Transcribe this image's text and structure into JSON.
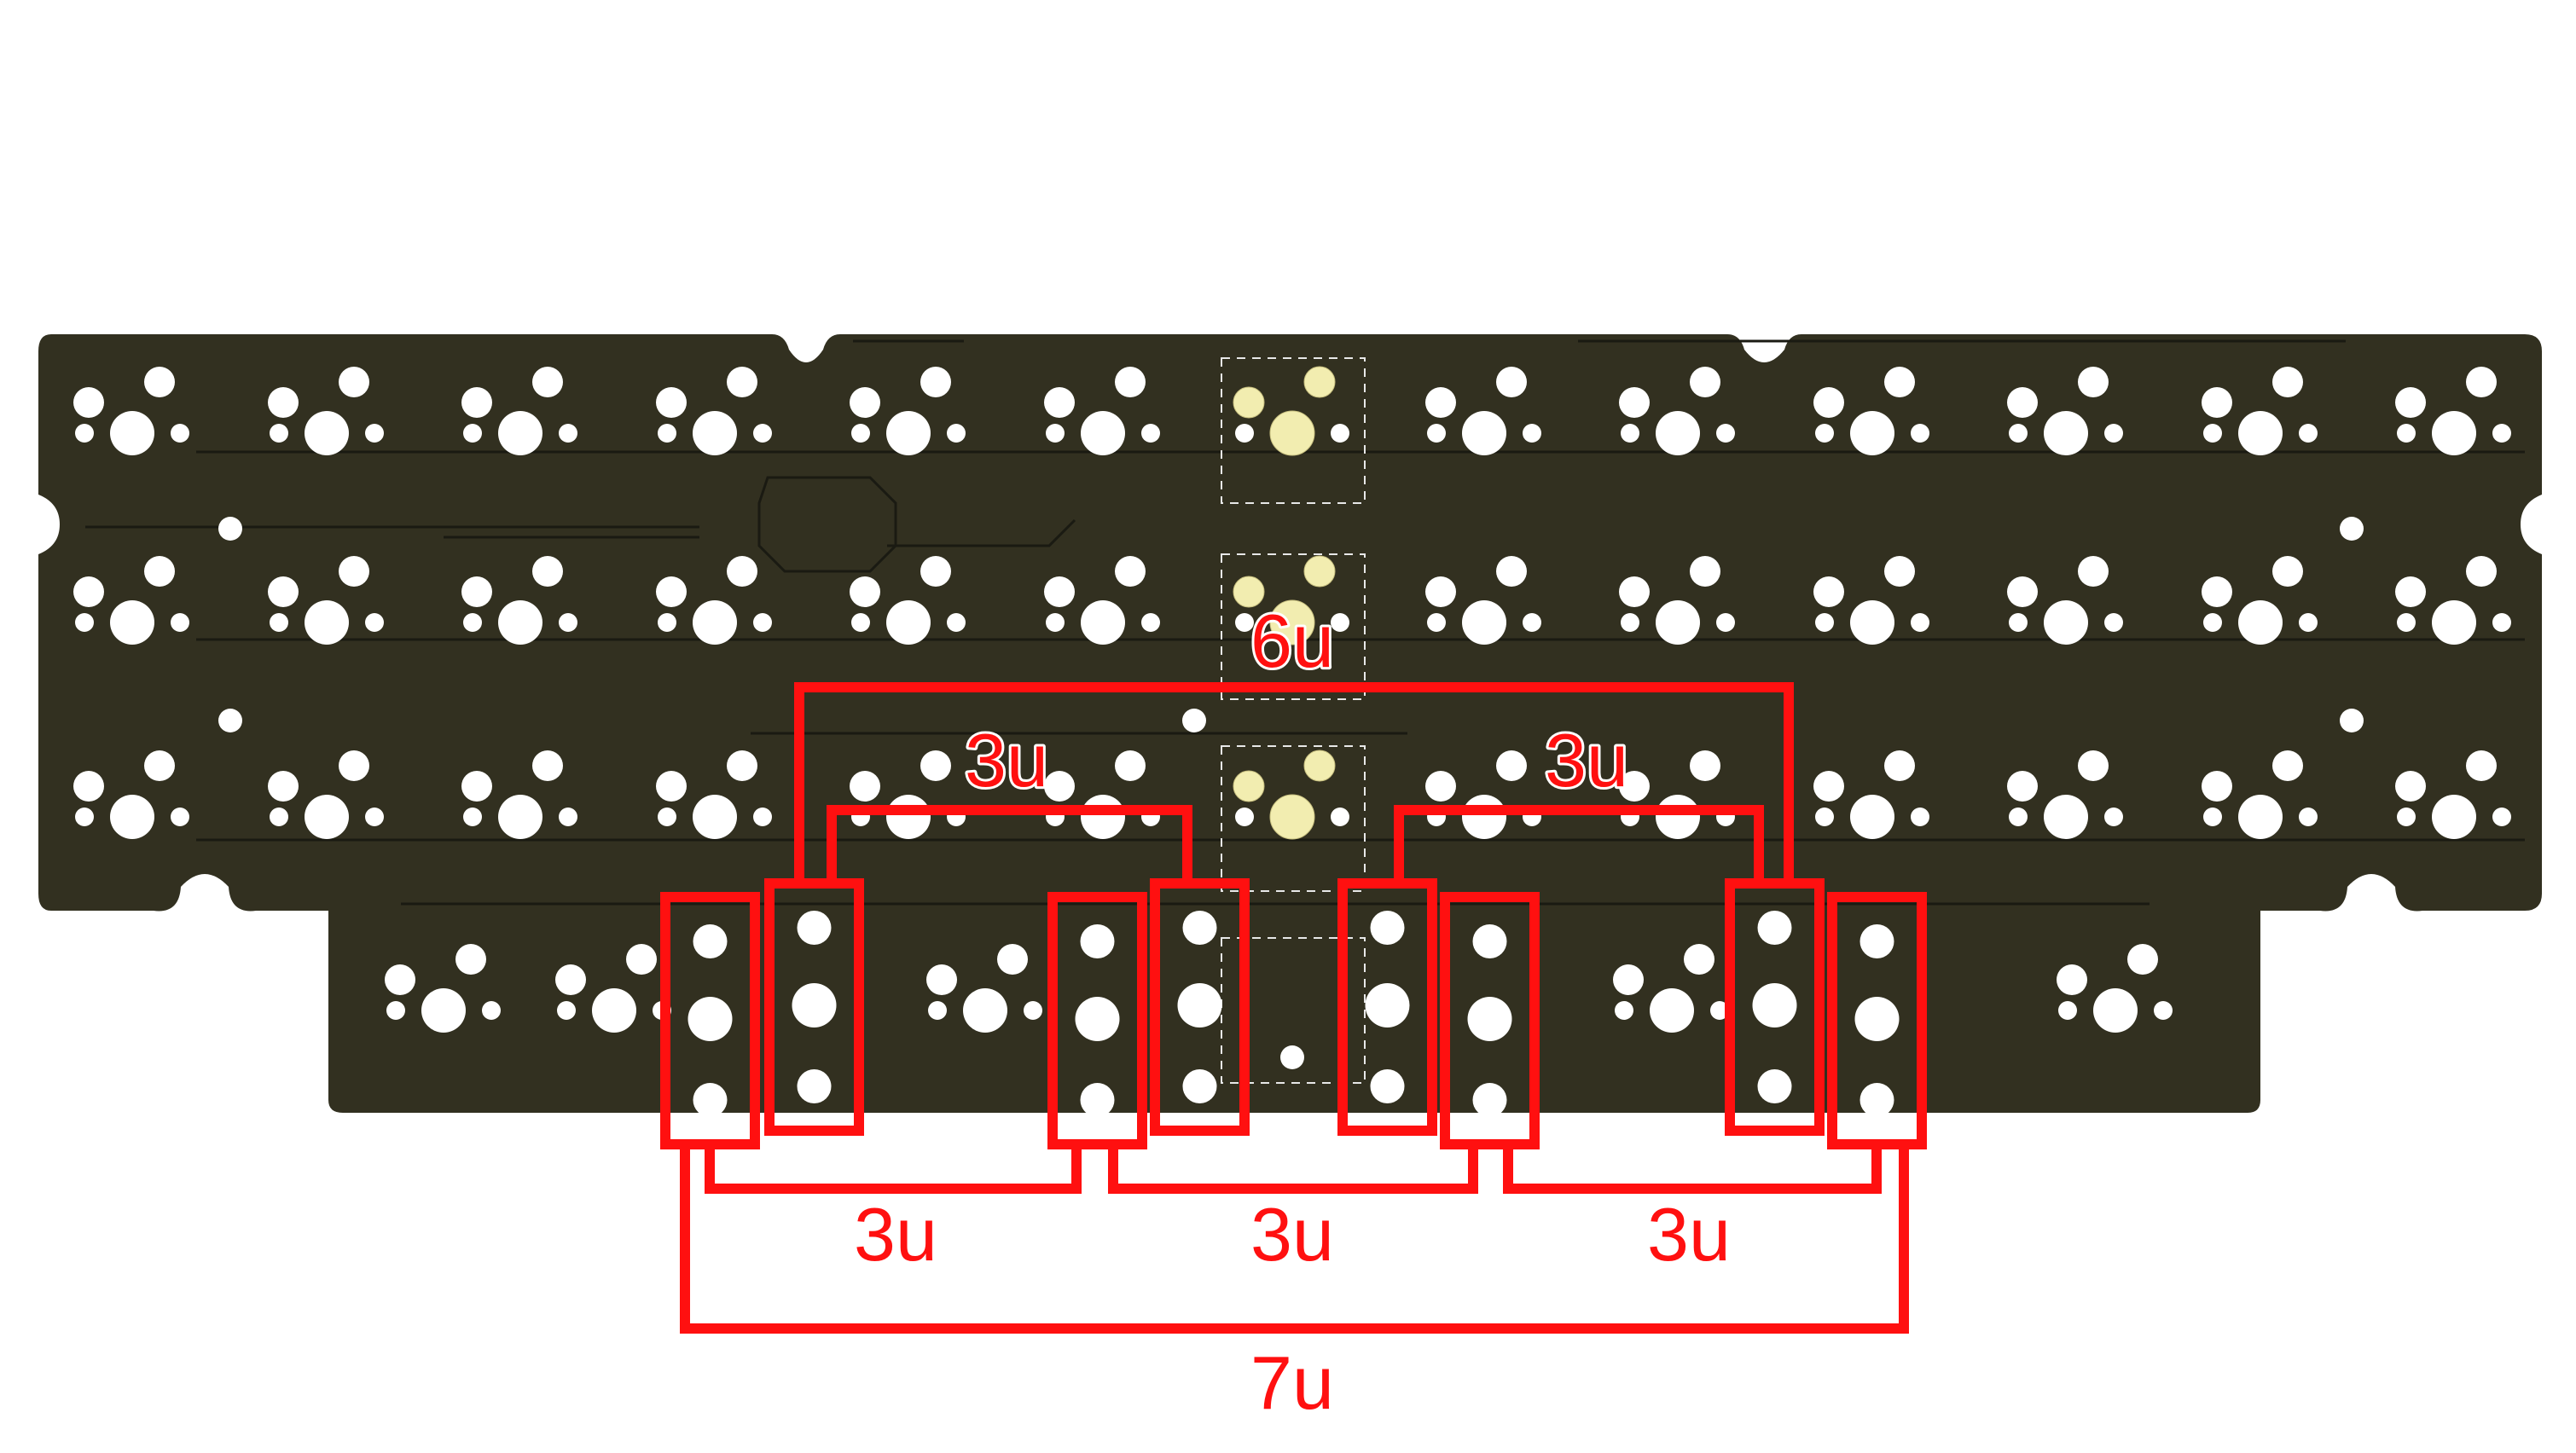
{
  "diagram": {
    "subject": "keyboard PCB stabilizer layout",
    "colors": {
      "pcb": "#323020",
      "highlight": "#ff1010",
      "holes": "#ffffff",
      "pads": "#f2edb0"
    },
    "labels": {
      "top_wide": "6u",
      "top_left": "3u",
      "top_right": "3u",
      "bottom_left": "3u",
      "bottom_middle": "3u",
      "bottom_right": "3u",
      "bottom_wide": "7u"
    }
  }
}
